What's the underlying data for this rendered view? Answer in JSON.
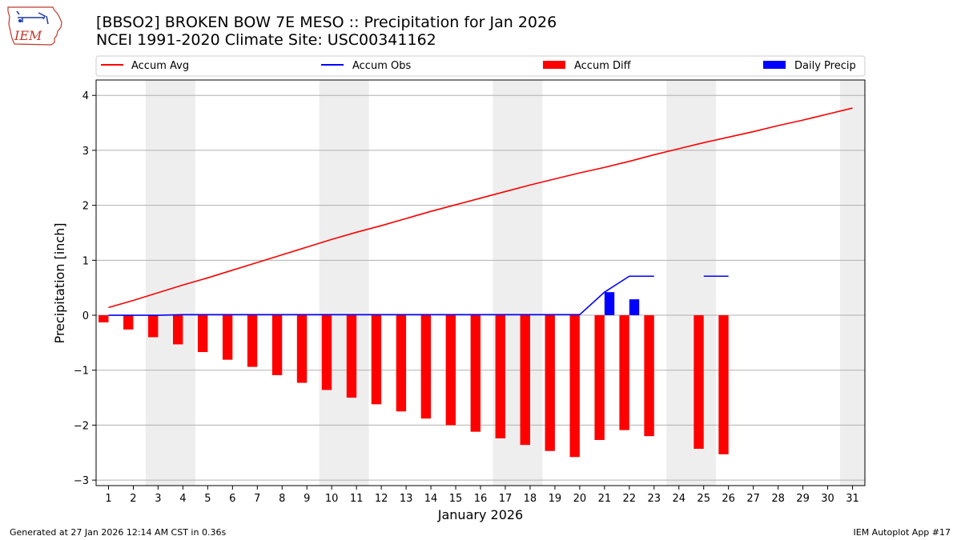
{
  "header": {
    "title_line1": "[BBSO2] BROKEN BOW 7E MESO :: Precipitation for Jan 2026",
    "title_line2": "NCEI 1991-2020 Climate Site: USC00341162"
  },
  "logo": {
    "text": "IEM",
    "icon": "iem-iowa-map-logo"
  },
  "footer": {
    "left": "Generated at 27 Jan 2026 12:14 AM CST in 0.36s",
    "right": "IEM Autoplot App #17"
  },
  "colors": {
    "accum_avg": "#ff0000",
    "accum_obs": "#0000ff",
    "accum_diff": "#ff0000",
    "daily_precip": "#0000ff",
    "weekend_shade": "#eeeeee",
    "grid": "#b0b0b0"
  },
  "chart_data": {
    "type": "bar",
    "xlabel": "January 2026",
    "ylabel": "Precipitation [inch]",
    "xlim": [
      0.5,
      31.5
    ],
    "ylim": [
      -3.1,
      4.28
    ],
    "yticks": [
      4,
      3,
      2,
      1,
      0,
      -1,
      -2,
      -3
    ],
    "ytick_labels": [
      "4",
      "3",
      "2",
      "1",
      "0",
      "−1",
      "−2",
      "−3"
    ],
    "grid": true,
    "days": [
      1,
      2,
      3,
      4,
      5,
      6,
      7,
      8,
      9,
      10,
      11,
      12,
      13,
      14,
      15,
      16,
      17,
      18,
      19,
      20,
      21,
      22,
      23,
      24,
      25,
      26,
      27,
      28,
      29,
      30,
      31
    ],
    "weekend_spans": [
      [
        2.5,
        4.5
      ],
      [
        9.5,
        11.5
      ],
      [
        16.5,
        18.5
      ],
      [
        23.5,
        25.5
      ],
      [
        30.5,
        31.5
      ]
    ],
    "legend": {
      "placement": "top",
      "entries": [
        {
          "label": "Accum Avg",
          "kind": "line",
          "color_key": "accum_avg"
        },
        {
          "label": "Accum Obs",
          "kind": "line",
          "color_key": "accum_obs"
        },
        {
          "label": "Accum Diff",
          "kind": "bar",
          "color_key": "accum_diff"
        },
        {
          "label": "Daily Precip",
          "kind": "bar",
          "color_key": "daily_precip"
        }
      ]
    },
    "series": [
      {
        "name": "Accum Avg",
        "kind": "line",
        "x": [
          1,
          2,
          3,
          4,
          5,
          6,
          7,
          8,
          9,
          10,
          11,
          12,
          13,
          14,
          15,
          16,
          17,
          18,
          19,
          20,
          21,
          22,
          23,
          24,
          25,
          26,
          27,
          28,
          29,
          30,
          31
        ],
        "values": [
          0.14,
          0.27,
          0.41,
          0.55,
          0.68,
          0.82,
          0.96,
          1.1,
          1.24,
          1.38,
          1.51,
          1.63,
          1.76,
          1.89,
          2.01,
          2.13,
          2.25,
          2.37,
          2.48,
          2.59,
          2.69,
          2.8,
          2.92,
          3.03,
          3.14,
          3.24,
          3.34,
          3.45,
          3.55,
          3.66,
          3.77
        ]
      },
      {
        "name": "Accum Obs",
        "kind": "line",
        "segments": [
          {
            "x": [
              1,
              2,
              3,
              4,
              5,
              6,
              7,
              8,
              9,
              10,
              11,
              12,
              13,
              14,
              15,
              16,
              17,
              18,
              19,
              20,
              21,
              22,
              23
            ],
            "values": [
              0,
              0,
              0,
              0.01,
              0.01,
              0.01,
              0.01,
              0.01,
              0.01,
              0.01,
              0.01,
              0.01,
              0.01,
              0.01,
              0.01,
              0.01,
              0.01,
              0.01,
              0.01,
              0.01,
              0.42,
              0.71,
              0.71
            ]
          },
          {
            "x": [
              25,
              26
            ],
            "values": [
              0.71,
              0.71
            ]
          }
        ]
      },
      {
        "name": "Accum Diff",
        "kind": "bar",
        "x": [
          1,
          2,
          3,
          4,
          5,
          6,
          7,
          8,
          9,
          10,
          11,
          12,
          13,
          14,
          15,
          16,
          17,
          18,
          19,
          20,
          21,
          22,
          23,
          25,
          26
        ],
        "values": [
          -0.13,
          -0.26,
          -0.4,
          -0.53,
          -0.67,
          -0.81,
          -0.94,
          -1.09,
          -1.23,
          -1.36,
          -1.5,
          -1.62,
          -1.75,
          -1.88,
          -2.0,
          -2.12,
          -2.24,
          -2.36,
          -2.47,
          -2.58,
          -2.27,
          -2.09,
          -2.2,
          -2.43,
          -2.53
        ]
      },
      {
        "name": "Daily Precip",
        "kind": "bar",
        "x": [
          21,
          22
        ],
        "values": [
          0.42,
          0.29
        ]
      }
    ]
  }
}
